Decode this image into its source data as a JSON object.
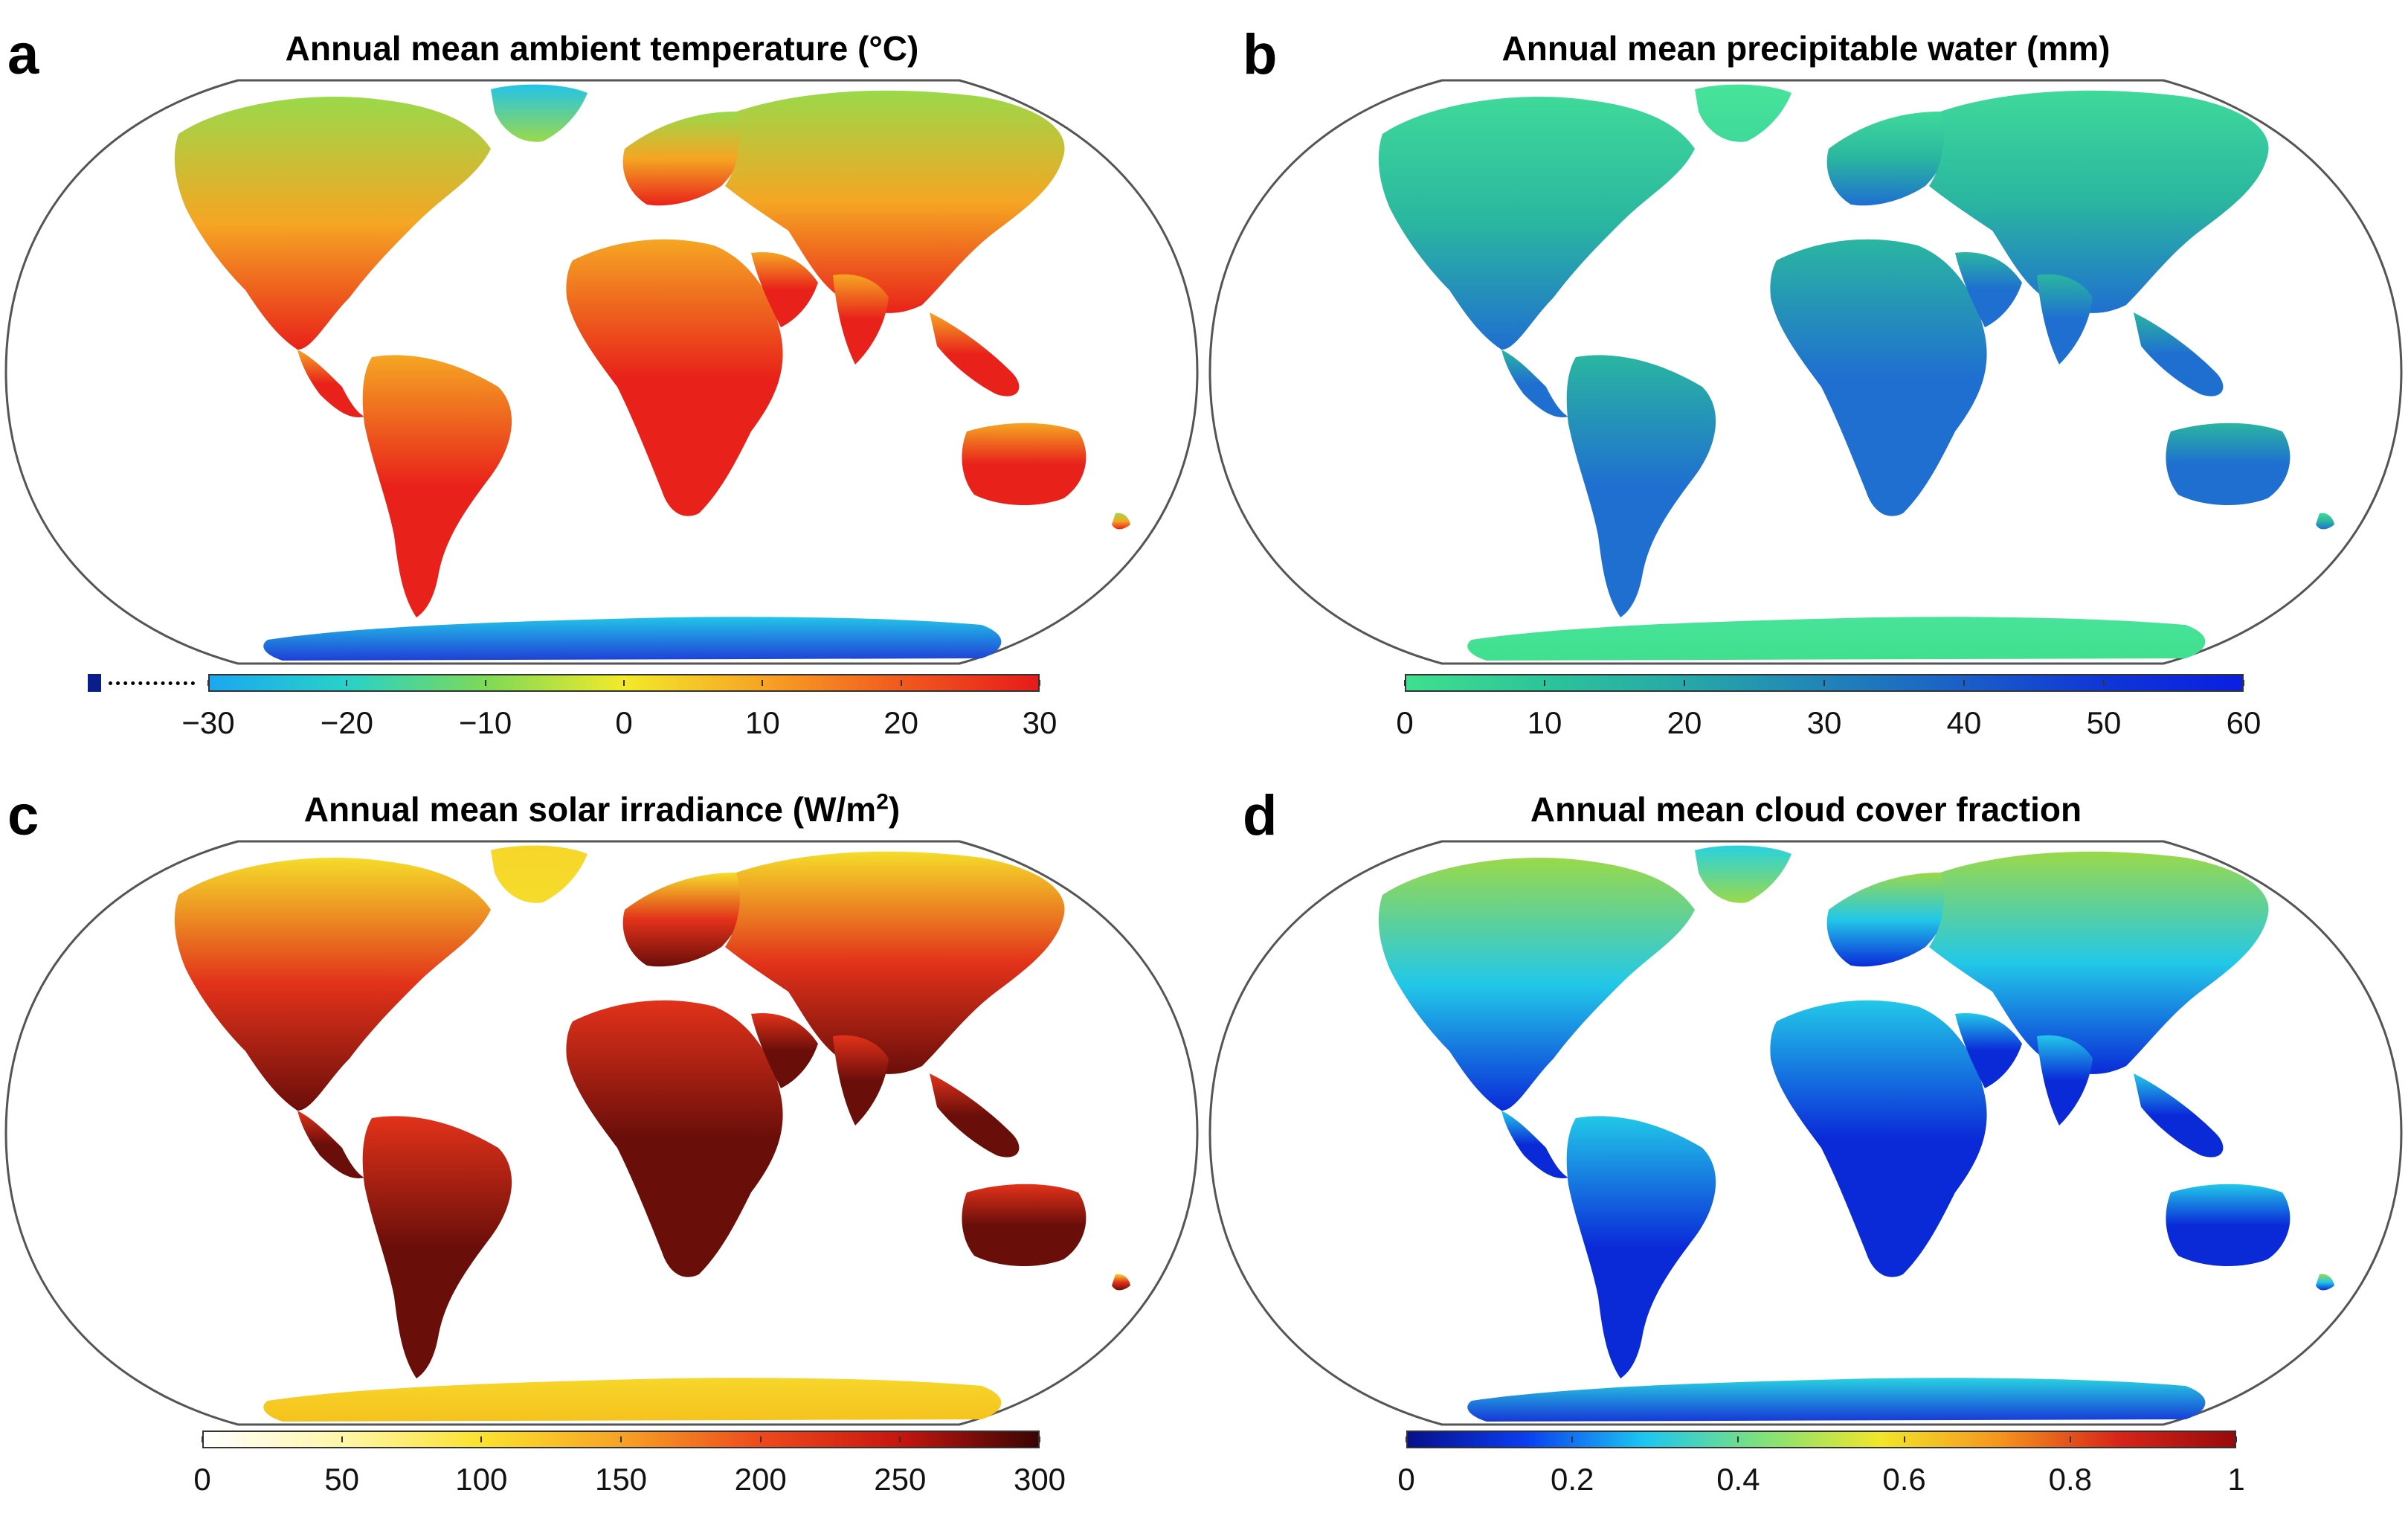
{
  "figure": {
    "panels": [
      {
        "letter": "a",
        "title": "Annual mean ambient temperature (°C)",
        "colormap": "temperature",
        "colors": {
          "ocean": "#ffffff",
          "land_hot": "#e8221a",
          "land_mid": "#f5a623",
          "land_cold": "#9ad94a",
          "ice": "#1f3fd6",
          "ice_edge": "#22c4e8"
        },
        "colorbar": {
          "ticks": [
            "−30",
            "−20",
            "−10",
            "0",
            "10",
            "20",
            "30"
          ],
          "gradient": [
            "#1aa8f0",
            "#28d2c8",
            "#7ed957",
            "#f2ea2a",
            "#f7a424",
            "#f25a1e",
            "#e61b1b"
          ],
          "has_under_marker": true
        }
      },
      {
        "letter": "b",
        "title": "Annual mean precipitable water (mm)",
        "colormap": "water",
        "colors": {
          "ocean": "#ffffff",
          "land_hot": "#1f6fd0",
          "land_mid": "#2ab6a0",
          "land_cold": "#3fd99a",
          "ice": "#3fe08e",
          "ice_edge": "#48e39a"
        },
        "colorbar": {
          "ticks": [
            "0",
            "10",
            "20",
            "30",
            "40",
            "50",
            "60"
          ],
          "gradient": [
            "#3fe08e",
            "#2cc49a",
            "#26a8a8",
            "#2184b8",
            "#1a5fc8",
            "#0f36d6",
            "#0a1fe0"
          ],
          "has_under_marker": false
        }
      },
      {
        "letter": "c",
        "title_main": "Annual mean solar irradiance (W/m",
        "title_sup": "2",
        "title_end": ")",
        "colormap": "solar",
        "colors": {
          "ocean": "#ffffff",
          "land_hot": "#6a0e0a",
          "land_mid": "#e2321a",
          "land_cold": "#f5dc2a",
          "ice": "#f5c21e",
          "ice_edge": "#f7d62a"
        },
        "colorbar": {
          "ticks": [
            "0",
            "50",
            "100",
            "150",
            "200",
            "250",
            "300"
          ],
          "gradient": [
            "#ffffff",
            "#fff6a8",
            "#fbe22e",
            "#f7a324",
            "#ee4a1c",
            "#c7160f",
            "#3a0504"
          ],
          "has_under_marker": false
        }
      },
      {
        "letter": "d",
        "title": "Annual mean cloud cover fraction",
        "colormap": "cloud",
        "colors": {
          "ocean": "#ffffff",
          "land_hot": "#0a2ad8",
          "land_mid": "#22c8e8",
          "land_cold": "#9ad94a",
          "ice": "#1638d8",
          "ice_edge": "#28d2e0"
        },
        "colorbar": {
          "ticks": [
            "0",
            "0.2",
            "0.4",
            "0.6",
            "0.8",
            "1"
          ],
          "gradient": [
            "#07108c",
            "#0a3ef0",
            "#1cc6f2",
            "#7fe27a",
            "#f2e62a",
            "#f5961e",
            "#d8261a",
            "#980a0a"
          ],
          "has_under_marker": false
        }
      }
    ]
  }
}
